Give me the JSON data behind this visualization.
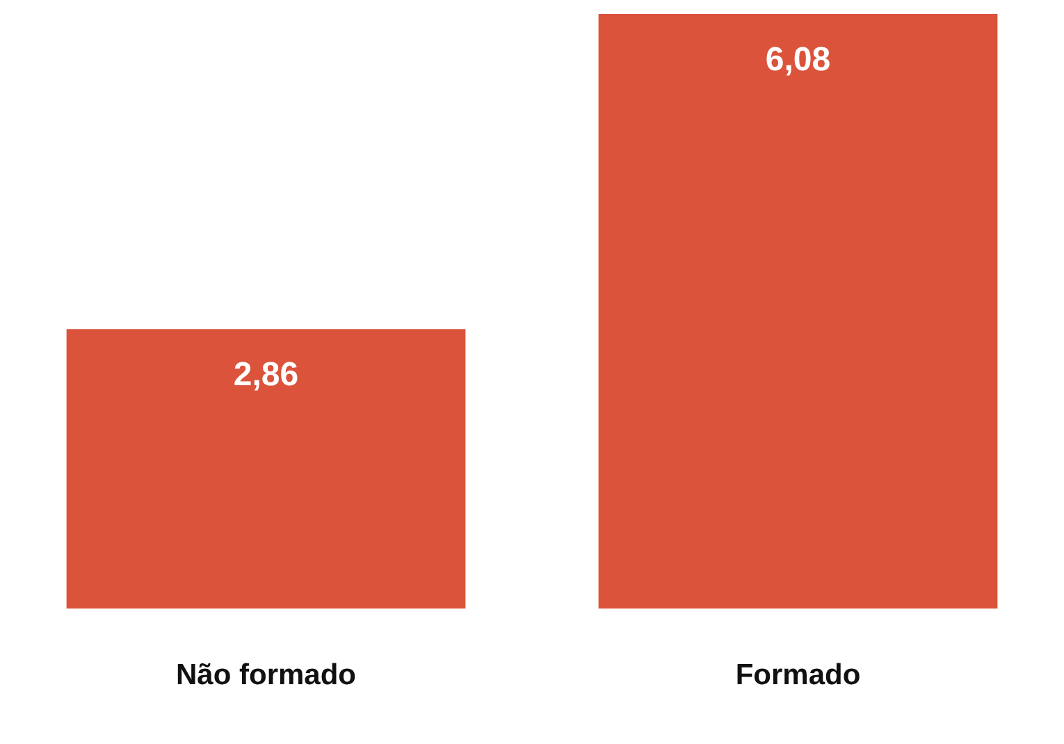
{
  "chart_data": {
    "type": "bar",
    "categories": [
      "Não formado",
      "Formado"
    ],
    "values": [
      2.86,
      6.08
    ],
    "value_labels": [
      "2,86",
      "6,08"
    ],
    "color": "#db533b",
    "grid": false,
    "legend": false
  }
}
